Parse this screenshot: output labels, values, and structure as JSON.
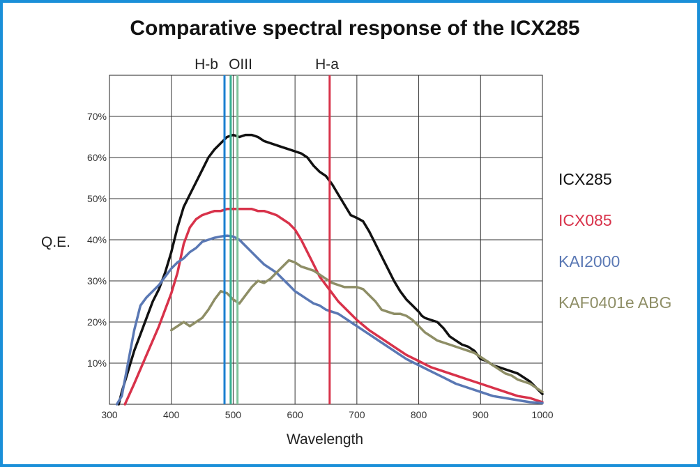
{
  "chart_data": {
    "type": "line",
    "title": "Comparative spectral response of the ICX285",
    "xlabel": "Wavelength",
    "ylabel": "Q.E.",
    "xlim": [
      300,
      1000
    ],
    "ylim": [
      0,
      80
    ],
    "grid": true,
    "x_ticks": [
      {
        "value": 300,
        "label": "300"
      },
      {
        "value": 400,
        "label": "400"
      },
      {
        "value": 500,
        "label": "500"
      },
      {
        "value": 600,
        "label": "600"
      },
      {
        "value": 700,
        "label": "700"
      },
      {
        "value": 800,
        "label": "800"
      },
      {
        "value": 900,
        "label": "900"
      },
      {
        "value": 1000,
        "label": "1000"
      }
    ],
    "y_ticks": [
      {
        "value": 10,
        "label": "10%"
      },
      {
        "value": 20,
        "label": "20%"
      },
      {
        "value": 30,
        "label": "30%"
      },
      {
        "value": 40,
        "label": "40%"
      },
      {
        "value": 50,
        "label": "50%"
      },
      {
        "value": 60,
        "label": "60%"
      },
      {
        "value": 70,
        "label": "70%"
      }
    ],
    "legend_position": "right",
    "vertical_lines": [
      {
        "name": "H-b",
        "label": "H-b",
        "x": 486,
        "color": "#1a7fd0"
      },
      {
        "name": "OIII-1",
        "label": "OIII",
        "x": 496,
        "color": "#36b090"
      },
      {
        "name": "OIII-2",
        "label": "",
        "x": 507,
        "color": "#7ec49a"
      },
      {
        "name": "H-a",
        "label": "H-a",
        "x": 656,
        "color": "#d8324a"
      }
    ],
    "series": [
      {
        "name": "ICX285",
        "color": "#111111",
        "points": [
          [
            315,
            0
          ],
          [
            320,
            3
          ],
          [
            330,
            8
          ],
          [
            340,
            13
          ],
          [
            350,
            17
          ],
          [
            360,
            21
          ],
          [
            370,
            25
          ],
          [
            380,
            28
          ],
          [
            390,
            32
          ],
          [
            400,
            37
          ],
          [
            410,
            43
          ],
          [
            420,
            48
          ],
          [
            430,
            51
          ],
          [
            440,
            54
          ],
          [
            450,
            57
          ],
          [
            460,
            60
          ],
          [
            470,
            62
          ],
          [
            480,
            63.5
          ],
          [
            490,
            65
          ],
          [
            500,
            65.5
          ],
          [
            510,
            65
          ],
          [
            520,
            65.5
          ],
          [
            530,
            65.5
          ],
          [
            540,
            65
          ],
          [
            550,
            64
          ],
          [
            560,
            63.5
          ],
          [
            570,
            63
          ],
          [
            580,
            62.5
          ],
          [
            590,
            62
          ],
          [
            600,
            61.5
          ],
          [
            610,
            61
          ],
          [
            620,
            60
          ],
          [
            630,
            58
          ],
          [
            640,
            56.5
          ],
          [
            650,
            55.5
          ],
          [
            660,
            53.5
          ],
          [
            670,
            51
          ],
          [
            680,
            48.5
          ],
          [
            690,
            46
          ],
          [
            700,
            45.3
          ],
          [
            710,
            44.5
          ],
          [
            720,
            42
          ],
          [
            730,
            39
          ],
          [
            740,
            36
          ],
          [
            750,
            33
          ],
          [
            760,
            30
          ],
          [
            770,
            27.5
          ],
          [
            780,
            25.5
          ],
          [
            790,
            24
          ],
          [
            800,
            22.5
          ],
          [
            805,
            21.5
          ],
          [
            810,
            21
          ],
          [
            820,
            20.5
          ],
          [
            830,
            20
          ],
          [
            840,
            18.5
          ],
          [
            850,
            16.5
          ],
          [
            860,
            15.5
          ],
          [
            870,
            14.5
          ],
          [
            880,
            14
          ],
          [
            890,
            13
          ],
          [
            900,
            11
          ],
          [
            910,
            10.5
          ],
          [
            920,
            9.5
          ],
          [
            930,
            9
          ],
          [
            940,
            8.5
          ],
          [
            950,
            8
          ],
          [
            960,
            7.5
          ],
          [
            970,
            6.5
          ],
          [
            980,
            5.5
          ],
          [
            990,
            4
          ],
          [
            1000,
            2.5
          ]
        ]
      },
      {
        "name": "ICX085",
        "color": "#d8324a",
        "points": [
          [
            325,
            0
          ],
          [
            340,
            5
          ],
          [
            360,
            12
          ],
          [
            380,
            19
          ],
          [
            400,
            27
          ],
          [
            410,
            32
          ],
          [
            420,
            39
          ],
          [
            430,
            43
          ],
          [
            440,
            45
          ],
          [
            450,
            46
          ],
          [
            460,
            46.5
          ],
          [
            470,
            47
          ],
          [
            480,
            47
          ],
          [
            490,
            47.5
          ],
          [
            500,
            47.5
          ],
          [
            510,
            47.5
          ],
          [
            520,
            47.5
          ],
          [
            530,
            47.5
          ],
          [
            540,
            47
          ],
          [
            550,
            47
          ],
          [
            560,
            46.5
          ],
          [
            570,
            46
          ],
          [
            580,
            45
          ],
          [
            590,
            44
          ],
          [
            600,
            42.5
          ],
          [
            610,
            40
          ],
          [
            620,
            37
          ],
          [
            630,
            34
          ],
          [
            640,
            31
          ],
          [
            650,
            29
          ],
          [
            660,
            27
          ],
          [
            670,
            25
          ],
          [
            680,
            23.5
          ],
          [
            690,
            22
          ],
          [
            700,
            20.5
          ],
          [
            720,
            18
          ],
          [
            740,
            16
          ],
          [
            760,
            14
          ],
          [
            780,
            12
          ],
          [
            800,
            10.5
          ],
          [
            820,
            9
          ],
          [
            840,
            8
          ],
          [
            860,
            7
          ],
          [
            880,
            6
          ],
          [
            900,
            5
          ],
          [
            920,
            4
          ],
          [
            940,
            3
          ],
          [
            960,
            2
          ],
          [
            980,
            1.5
          ],
          [
            1000,
            0.5
          ]
        ]
      },
      {
        "name": "KAI2000",
        "color": "#5a78b4",
        "points": [
          [
            312,
            0
          ],
          [
            320,
            2
          ],
          [
            330,
            10
          ],
          [
            340,
            18
          ],
          [
            350,
            24
          ],
          [
            360,
            26
          ],
          [
            370,
            27.5
          ],
          [
            380,
            29
          ],
          [
            390,
            31
          ],
          [
            400,
            33
          ],
          [
            410,
            34.5
          ],
          [
            420,
            35.5
          ],
          [
            430,
            37
          ],
          [
            440,
            38
          ],
          [
            450,
            39.5
          ],
          [
            460,
            40
          ],
          [
            470,
            40.5
          ],
          [
            480,
            40.8
          ],
          [
            490,
            41
          ],
          [
            500,
            40.8
          ],
          [
            510,
            40
          ],
          [
            520,
            38.5
          ],
          [
            530,
            37
          ],
          [
            540,
            35.5
          ],
          [
            550,
            34
          ],
          [
            560,
            33
          ],
          [
            570,
            32
          ],
          [
            580,
            30.5
          ],
          [
            590,
            29
          ],
          [
            600,
            27.5
          ],
          [
            610,
            26.5
          ],
          [
            620,
            25.5
          ],
          [
            630,
            24.5
          ],
          [
            640,
            24
          ],
          [
            650,
            23
          ],
          [
            660,
            22.5
          ],
          [
            670,
            22
          ],
          [
            680,
            21
          ],
          [
            690,
            20
          ],
          [
            700,
            19
          ],
          [
            720,
            17
          ],
          [
            740,
            15
          ],
          [
            760,
            13
          ],
          [
            780,
            11
          ],
          [
            800,
            9.5
          ],
          [
            820,
            8
          ],
          [
            840,
            6.5
          ],
          [
            860,
            5
          ],
          [
            880,
            4
          ],
          [
            900,
            3
          ],
          [
            920,
            2
          ],
          [
            940,
            1.5
          ],
          [
            960,
            1
          ],
          [
            980,
            0.5
          ],
          [
            1000,
            0.3
          ]
        ]
      },
      {
        "name": "KAF0401e ABG",
        "color": "#8e8e66",
        "points": [
          [
            400,
            18
          ],
          [
            410,
            19
          ],
          [
            420,
            20
          ],
          [
            430,
            19
          ],
          [
            440,
            20
          ],
          [
            450,
            21
          ],
          [
            460,
            23
          ],
          [
            470,
            25.5
          ],
          [
            480,
            27.5
          ],
          [
            490,
            27
          ],
          [
            500,
            25.5
          ],
          [
            510,
            24.5
          ],
          [
            520,
            26.5
          ],
          [
            530,
            28.5
          ],
          [
            540,
            30
          ],
          [
            550,
            29.5
          ],
          [
            560,
            30.5
          ],
          [
            570,
            32
          ],
          [
            580,
            33.5
          ],
          [
            590,
            35
          ],
          [
            600,
            34.5
          ],
          [
            610,
            33.5
          ],
          [
            620,
            33
          ],
          [
            630,
            32.5
          ],
          [
            640,
            31.5
          ],
          [
            650,
            30.5
          ],
          [
            660,
            29.5
          ],
          [
            670,
            29
          ],
          [
            680,
            28.5
          ],
          [
            690,
            28.5
          ],
          [
            700,
            28.5
          ],
          [
            710,
            28
          ],
          [
            720,
            26.5
          ],
          [
            730,
            25
          ],
          [
            740,
            23
          ],
          [
            750,
            22.5
          ],
          [
            760,
            22
          ],
          [
            770,
            22
          ],
          [
            780,
            21.5
          ],
          [
            790,
            20.5
          ],
          [
            800,
            19
          ],
          [
            810,
            17.5
          ],
          [
            820,
            16.5
          ],
          [
            830,
            15.5
          ],
          [
            840,
            15
          ],
          [
            850,
            14.5
          ],
          [
            860,
            14
          ],
          [
            870,
            13.5
          ],
          [
            880,
            13
          ],
          [
            890,
            12.5
          ],
          [
            900,
            11.5
          ],
          [
            910,
            10.5
          ],
          [
            920,
            9.5
          ],
          [
            930,
            8.5
          ],
          [
            940,
            7.5
          ],
          [
            950,
            7
          ],
          [
            960,
            6
          ],
          [
            970,
            5.5
          ],
          [
            980,
            5
          ],
          [
            990,
            4
          ],
          [
            1000,
            3
          ]
        ]
      }
    ]
  }
}
